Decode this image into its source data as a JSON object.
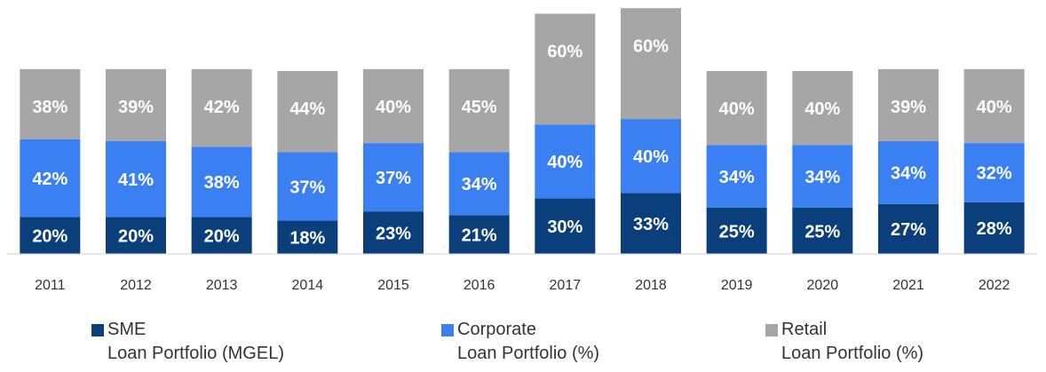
{
  "chart_data": {
    "type": "stacked-bar",
    "categories": [
      "2011",
      "2012",
      "2013",
      "2014",
      "2015",
      "2016",
      "2017",
      "2018",
      "2019",
      "2020",
      "2021",
      "2022"
    ],
    "series": [
      {
        "name": "SME\nLoan Portfolio (MGEL)",
        "color": "#0b3f7c",
        "values": [
          20,
          20,
          20,
          18,
          23,
          21,
          30,
          33,
          25,
          25,
          27,
          28
        ],
        "value_labels": [
          "20%",
          "20%",
          "20%",
          "18%",
          "23%",
          "21%",
          "30%",
          "33%",
          "25%",
          "25%",
          "27%",
          "28%"
        ]
      },
      {
        "name": "Corporate\nLoan Portfolio (%)",
        "color": "#3b80f2",
        "values": [
          42,
          41,
          38,
          37,
          37,
          34,
          40,
          40,
          34,
          34,
          34,
          32
        ],
        "value_labels": [
          "42%",
          "41%",
          "38%",
          "37%",
          "37%",
          "34%",
          "40%",
          "40%",
          "34%",
          "34%",
          "34%",
          "32%"
        ]
      },
      {
        "name": "Retail\nLoan Portfolio (%)",
        "color": "#a6a6a6",
        "values": [
          38,
          39,
          42,
          44,
          40,
          45,
          60,
          60,
          40,
          40,
          39,
          40
        ],
        "value_labels": [
          "38%",
          "39%",
          "42%",
          "44%",
          "40%",
          "45%",
          "60%",
          "60%",
          "40%",
          "40%",
          "39%",
          "40%"
        ]
      }
    ],
    "ylim": [
      0,
      135
    ]
  }
}
